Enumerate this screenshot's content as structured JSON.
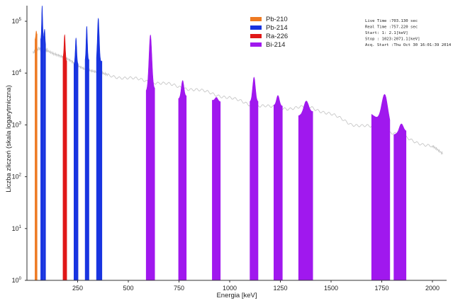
{
  "chart_data": {
    "type": "area",
    "title": "",
    "xlabel": "Energia [keV]",
    "ylabel": "Liczba zliczeń (skala logarytmiczna)",
    "xlim": [
      0,
      2070
    ],
    "ylim": [
      1,
      200000
    ],
    "y_scale": "log",
    "x_ticks": [
      250,
      500,
      750,
      1000,
      1250,
      1500,
      1750,
      2000
    ],
    "x_tick_labels": [
      "250",
      "500",
      "750",
      "1000",
      "1250",
      "1500",
      "1750",
      "2000"
    ],
    "y_ticks": [
      1,
      10,
      100,
      1000,
      10000,
      100000
    ],
    "y_tick_labels": [
      {
        "base": "10",
        "exp": "0"
      },
      {
        "base": "10",
        "exp": "1"
      },
      {
        "base": "10",
        "exp": "2"
      },
      {
        "base": "10",
        "exp": "3"
      },
      {
        "base": "10",
        "exp": "4"
      },
      {
        "base": "10",
        "exp": "5"
      }
    ],
    "grid": false,
    "legend_position": "top-center",
    "background_spectrum": {
      "name": "",
      "color": "#c8c8c8",
      "x": [
        30,
        60,
        80,
        100,
        150,
        200,
        250,
        300,
        350,
        400,
        500,
        600,
        700,
        800,
        900,
        1000,
        1100,
        1200,
        1300,
        1400,
        1500,
        1600,
        1700,
        1800,
        1900,
        2000,
        2050
      ],
      "y": [
        25000,
        30000,
        26000,
        28000,
        23000,
        18000,
        14000,
        12000,
        10000,
        9000,
        8000,
        7000,
        6000,
        5000,
        4200,
        3300,
        2500,
        2200,
        2100,
        2200,
        1600,
        1050,
        900,
        720,
        500,
        380,
        270
      ]
    },
    "series": [
      {
        "name": "Pb-210",
        "color": "#ee7a22",
        "peaks": [
          {
            "center": 46,
            "peak": 65000,
            "left": 40,
            "right": 50,
            "base_left": 45000,
            "base_right": 55000
          }
        ]
      },
      {
        "name": "Pb-214",
        "color": "#1834e0",
        "peaks": [
          {
            "center": 75,
            "peak": 200000,
            "left": 68,
            "right": 82,
            "base_left": 45000,
            "base_right": 50000
          },
          {
            "center": 87,
            "peak": 70000,
            "left": 84,
            "right": 92,
            "base_left": 55000,
            "base_right": 35000
          },
          {
            "center": 242,
            "peak": 48000,
            "left": 232,
            "right": 252,
            "base_left": 15000,
            "base_right": 15000
          },
          {
            "center": 295,
            "peak": 80000,
            "left": 287,
            "right": 306,
            "base_left": 17000,
            "base_right": 18000
          },
          {
            "center": 352,
            "peak": 115000,
            "left": 343,
            "right": 370,
            "base_left": 15000,
            "base_right": 17000
          }
        ]
      },
      {
        "name": "Ra-226",
        "color": "#e01818",
        "peaks": [
          {
            "center": 186,
            "peak": 55000,
            "left": 178,
            "right": 196,
            "base_left": 20000,
            "base_right": 17000
          }
        ]
      },
      {
        "name": "Bi-214",
        "color": "#a018ee",
        "peaks": [
          {
            "center": 609,
            "peak": 55000,
            "left": 588,
            "right": 630,
            "base_left": 4500,
            "base_right": 5000
          },
          {
            "center": 768,
            "peak": 7200,
            "left": 748,
            "right": 786,
            "base_left": 3200,
            "base_right": 3600
          },
          {
            "center": 934,
            "peak": 3400,
            "left": 914,
            "right": 954,
            "base_left": 3000,
            "base_right": 2800
          },
          {
            "center": 1120,
            "peak": 8300,
            "left": 1100,
            "right": 1140,
            "base_left": 2800,
            "base_right": 2800
          },
          {
            "center": 1238,
            "peak": 3700,
            "left": 1218,
            "right": 1260,
            "base_left": 2400,
            "base_right": 2300
          },
          {
            "center": 1378,
            "peak": 2900,
            "left": 1340,
            "right": 1410,
            "base_left": 1500,
            "base_right": 1800
          },
          {
            "center": 1764,
            "peak": 3900,
            "left": 1700,
            "right": 1790,
            "base_left": 1600,
            "base_right": 900
          },
          {
            "center": 1847,
            "peak": 1050,
            "left": 1810,
            "right": 1870,
            "base_left": 650,
            "base_right": 750
          }
        ]
      }
    ]
  },
  "info_box": {
    "lines": [
      "Live Time  :703.130 sec",
      "Real Time  :757.220 sec",
      "Start:     1:    2.1[keV]",
      "Stop : 1023:2071.1[keV]",
      "Acq. Start :Thu Oct 30 16:01:39 2014"
    ]
  }
}
